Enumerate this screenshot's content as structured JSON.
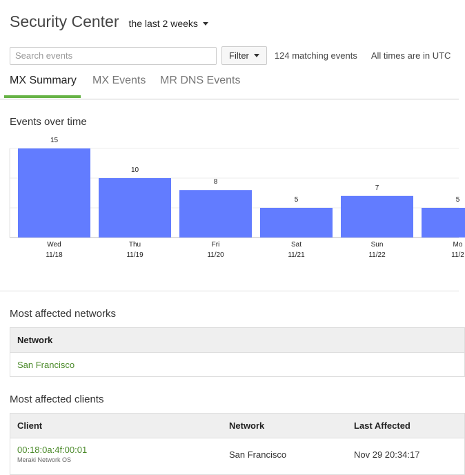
{
  "header": {
    "title": "Security Center",
    "time_range": "the last 2 weeks"
  },
  "toolbar": {
    "search_placeholder": "Search events",
    "filter_label": "Filter",
    "match_count": "124 matching events",
    "timezone_note": "All times are in UTC"
  },
  "tabs": [
    {
      "label": "MX Summary",
      "active": true
    },
    {
      "label": "MX Events",
      "active": false
    },
    {
      "label": "MR DNS Events",
      "active": false
    }
  ],
  "events_section": {
    "title": "Events over time"
  },
  "chart_data": {
    "type": "bar",
    "categories": [
      "Wed",
      "Thu",
      "Fri",
      "Sat",
      "Sun",
      "Mo"
    ],
    "dates": [
      "11/18",
      "11/19",
      "11/20",
      "11/21",
      "11/22",
      "11/2"
    ],
    "values": [
      15,
      10,
      8,
      5,
      7,
      5
    ],
    "ylim": [
      0,
      15
    ],
    "grid": true,
    "color": "#627cff"
  },
  "networks_section": {
    "title": "Most affected networks",
    "column_header": "Network",
    "rows": [
      {
        "network": "San Francisco"
      }
    ]
  },
  "clients_section": {
    "title": "Most affected clients",
    "headers": {
      "client": "Client",
      "network": "Network",
      "last_affected": "Last Affected"
    },
    "rows": [
      {
        "client": "00:18:0a:4f:00:01",
        "client_os": "Meraki Network OS",
        "network": "San Francisco",
        "last_affected": "Nov 29 20:34:17"
      }
    ]
  },
  "colors": {
    "accent": "#67b346",
    "link": "#4b8a2a",
    "bar": "#627cff"
  }
}
